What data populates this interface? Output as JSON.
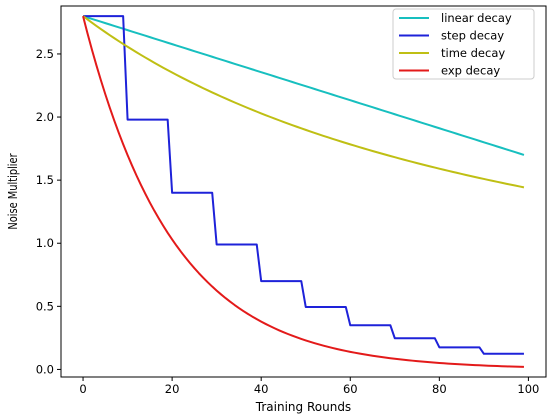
{
  "chart_data": {
    "type": "line",
    "xlabel": "Training Rounds",
    "ylabel": "Noise Multiplier",
    "xlim": [
      -4.95,
      103.95
    ],
    "ylim": [
      -0.06,
      2.88
    ],
    "xticks": [
      0,
      20,
      40,
      60,
      80,
      100
    ],
    "yticks": [
      0.0,
      0.5,
      1.0,
      1.5,
      2.0,
      2.5
    ],
    "xtick_labels": [
      "0",
      "20",
      "40",
      "60",
      "80",
      "100"
    ],
    "ytick_labels": [
      "0.0",
      "0.5",
      "1.0",
      "1.5",
      "2.0",
      "2.5"
    ],
    "grid": false,
    "legend_position": "top-right",
    "x": {
      "start": 0,
      "end": 99,
      "step": 1
    },
    "series": [
      {
        "name": "linear decay",
        "color": "#17bfbf",
        "function": "linear",
        "start": 2.8,
        "end": 1.7
      },
      {
        "name": "step decay",
        "color": "#1e22d9",
        "function": "step",
        "start": 2.8,
        "step_size": 10,
        "factor": 0.7071,
        "values_by_step": [
          2.8,
          1.98,
          1.4,
          0.99,
          0.7,
          0.495,
          0.35,
          0.247,
          0.175,
          0.124
        ]
      },
      {
        "name": "time decay",
        "color": "#bfbf14",
        "function": "time",
        "start": 2.8,
        "rate": 0.0095,
        "end": 1.44
      },
      {
        "name": "exp decay",
        "color": "#e31a1a",
        "function": "exp",
        "start": 2.8,
        "rate": 0.05,
        "end": 0.02
      }
    ]
  }
}
